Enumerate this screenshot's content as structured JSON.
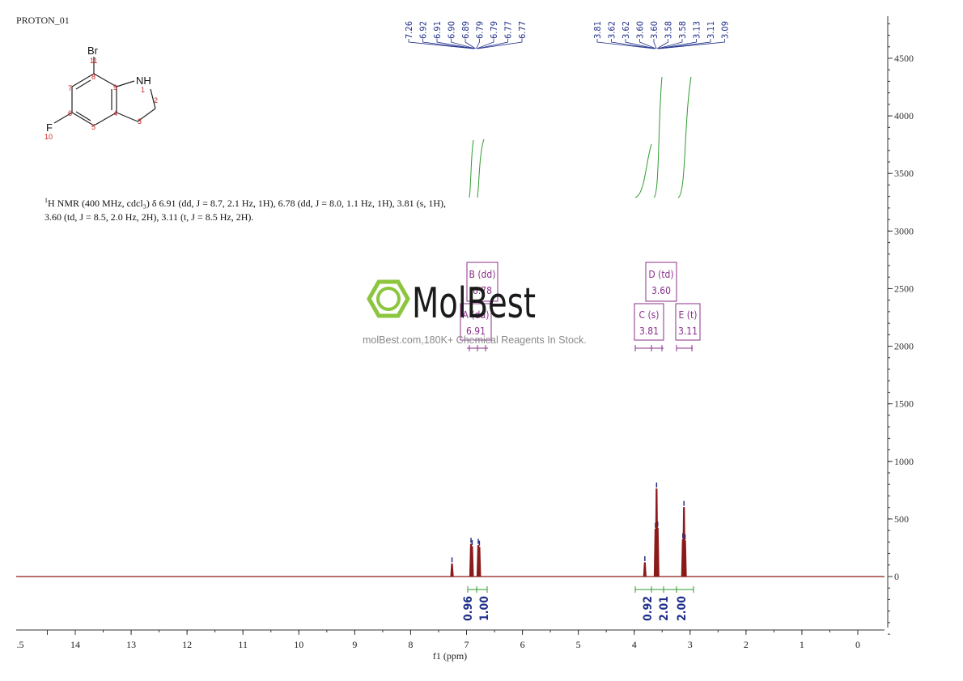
{
  "experiment": {
    "name": "PROTON_01"
  },
  "description": {
    "nucleus_sup": "1",
    "text_line1": "H NMR (400 MHz, cdcl₃) δ 6.91 (dd, J = 8.7, 2.1 Hz, 1H), 6.78 (dd, J = 8.0, 1.1 Hz, 1H), 3.81 (s, 1H),",
    "text_line2": "3.60 (td, J = 8.5, 2.0 Hz, 2H), 3.11 (t, J = 8.5 Hz, 2H)."
  },
  "watermark": {
    "brand": "MolBest",
    "subtitle": "molBest.com,180K+ Chemical Reagents In Stock.",
    "color": "#8cc63f"
  },
  "structure": {
    "atoms": {
      "br": "Br",
      "nh": "NH",
      "f": "F",
      "n1": "11",
      "n2": "7",
      "n3": "8",
      "n4": "9",
      "n5": "1",
      "n6": "2",
      "n7": "6",
      "n8": "4",
      "n9": "3",
      "n10": "5",
      "n11": "10"
    }
  },
  "peak_labels_left": [
    "7.26",
    "6.92",
    "6.91",
    "6.90",
    "6.89",
    "6.79",
    "6.79",
    "6.77",
    "6.77"
  ],
  "peak_labels_right": [
    "3.81",
    "3.62",
    "3.62",
    "3.60",
    "3.60",
    "3.58",
    "3.58",
    "3.13",
    "3.11",
    "3.09"
  ],
  "multiplets": [
    {
      "letter": "B (dd)",
      "shift": "6.78"
    },
    {
      "letter": "A (dd)",
      "shift": "6.91"
    },
    {
      "letter": "D (td)",
      "shift": "3.60"
    },
    {
      "letter": "C (s)",
      "shift": "3.81"
    },
    {
      "letter": "E (t)",
      "shift": "3.11"
    }
  ],
  "integrals": [
    "0.96",
    "1.00",
    "0.92",
    "2.01",
    "2.00"
  ],
  "colors": {
    "spectrum": "#8b1a1a",
    "peak_label": "#1f2f8a",
    "multiplet": "#8b2f8b",
    "integral": "#2e9b2e",
    "integral_value": "#1f2f8a",
    "axis": "#333333",
    "structure_number": "#cc2222"
  },
  "chart_data": {
    "type": "line",
    "title": "",
    "xlabel": "f1 (ppm)",
    "ylabel": "",
    "xlim": [
      15,
      -0.5
    ],
    "ylim": [
      -500,
      4900
    ],
    "x_tick_labels": [
      ".5",
      "14",
      "13",
      "12",
      "11",
      "10",
      "9",
      "8",
      "7",
      "6",
      "5",
      "4",
      "3",
      "2",
      "1",
      "0"
    ],
    "y_tick_labels": [
      "4500",
      "4000",
      "3500",
      "3000",
      "2500",
      "2000",
      "1500",
      "1000",
      "500",
      "0"
    ],
    "peaks": [
      {
        "ppm": 7.26,
        "height": 110
      },
      {
        "ppm": 6.92,
        "height": 280
      },
      {
        "ppm": 6.9,
        "height": 260
      },
      {
        "ppm": 6.79,
        "height": 270
      },
      {
        "ppm": 6.77,
        "height": 255
      },
      {
        "ppm": 3.81,
        "height": 120
      },
      {
        "ppm": 3.62,
        "height": 410
      },
      {
        "ppm": 3.6,
        "height": 760
      },
      {
        "ppm": 3.58,
        "height": 420
      },
      {
        "ppm": 3.13,
        "height": 320
      },
      {
        "ppm": 3.11,
        "height": 600
      },
      {
        "ppm": 3.09,
        "height": 310
      }
    ]
  }
}
